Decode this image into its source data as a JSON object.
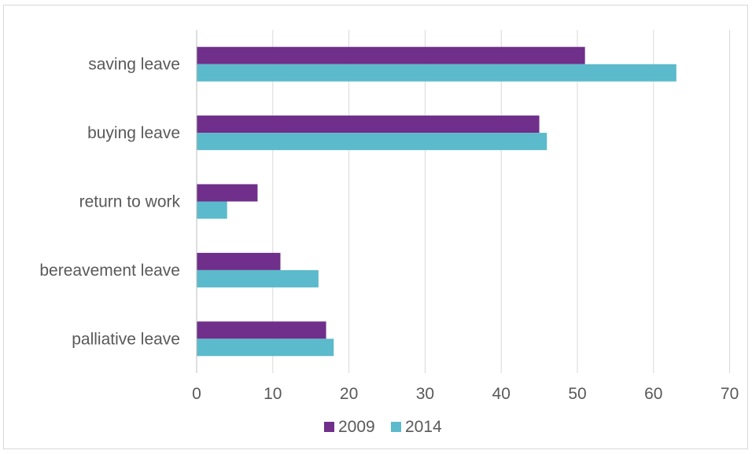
{
  "chart_data": {
    "type": "bar",
    "orientation": "horizontal",
    "title": "",
    "xlabel": "",
    "ylabel": "",
    "categories": [
      "saving leave",
      "buying leave",
      "return to work",
      "bereavement leave",
      "palliative leave"
    ],
    "series": [
      {
        "name": "2009",
        "color": "#6f2f8a",
        "values": [
          51,
          45,
          8,
          11,
          17
        ]
      },
      {
        "name": "2014",
        "color": "#5bbacb",
        "values": [
          63,
          46,
          4,
          16,
          18
        ]
      }
    ],
    "xlim": [
      0,
      70
    ],
    "xticks": [
      "0",
      "10",
      "20",
      "30",
      "40",
      "50",
      "60",
      "70"
    ],
    "grid": true,
    "legend": "bottom"
  }
}
